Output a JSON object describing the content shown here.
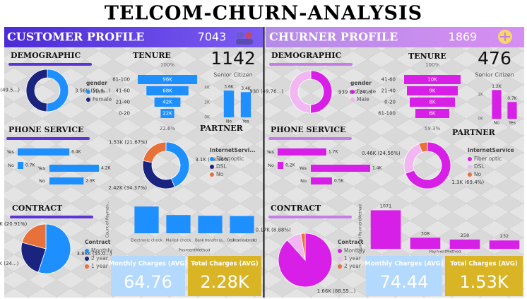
{
  "title": "TELCOM-CHURN-ANALYSIS",
  "panels": [
    {
      "title": "CUSTOMER PROFILE",
      "count": 7043,
      "headings": [
        "DEMOGRAPHIC",
        "TENURE",
        "PHONE SERVICE",
        "PARTNER",
        "CONTRACT"
      ],
      "senior_citizen": {
        "value": 1142,
        "label": "Senior Citizen"
      },
      "kpis": [
        {
          "label": "Monthly Charges (AVG)",
          "value": 64.76
        },
        {
          "label": "Total Charges (AVG)",
          "value": "2.28K"
        }
      ]
    },
    {
      "title": "CHURNER PROFILE",
      "count": 1869,
      "headings": [
        "DEMOGRAPHIC",
        "TENURE",
        "PHONE SERVICE",
        "PARTNER",
        "CONTRACT"
      ],
      "senior_citizen": {
        "value": 476,
        "label": "Senior Citizen"
      },
      "kpis": [
        {
          "label": "Monthly Charges (AVG)",
          "value": 74.44
        },
        {
          "label": "Total Charges (AVG)",
          "value": "1.53K"
        }
      ]
    }
  ],
  "chart_data": [
    {
      "type": "donut",
      "legend_title": "gender",
      "categories": [
        "Male",
        "Female"
      ],
      "values": [
        3560,
        3490
      ],
      "value_labels": [
        "3.56K (50.4...)",
        "3.49K (49.5...)"
      ],
      "colors": [
        "#1e8fff",
        "#1a237e"
      ]
    },
    {
      "type": "funnel",
      "categories": [
        "61-100",
        "41-60",
        "21-40",
        "0-20"
      ],
      "values": [
        96000,
        68000,
        42000,
        22000
      ],
      "value_labels": [
        "96K",
        "68K",
        "42K",
        "22K"
      ],
      "annotations": [
        "100%",
        "22.6%"
      ],
      "color": "#1e8fff"
    },
    {
      "type": "bar",
      "categories": [
        "No",
        "Yes"
      ],
      "values": [
        3600,
        3400
      ],
      "value_labels": [
        "3.6K",
        "3.4K"
      ],
      "ylim": [
        0,
        4000
      ],
      "yticks": [
        {
          "value": 0,
          "label": "0K"
        },
        {
          "value": 2000,
          "label": "2K"
        },
        {
          "value": 4000,
          "label": "4K"
        }
      ],
      "color": "#1e8fff"
    },
    {
      "type": "hbar",
      "categories": [
        "Yes",
        "No"
      ],
      "values": [
        6400,
        700
      ],
      "value_labels": [
        "6.4K",
        "0.7K"
      ],
      "xlim": [
        0,
        7000
      ],
      "color": "#1e8fff"
    },
    {
      "type": "hbar",
      "categories": [
        "Yes",
        "No"
      ],
      "values": [
        4200,
        2900
      ],
      "value_labels": [
        "4.2K",
        "2.9K"
      ],
      "xlim": [
        0,
        4500
      ],
      "color": "#1e8fff"
    },
    {
      "type": "donut",
      "legend_title": "InternetServi...",
      "categories": [
        "Fiber optic",
        "DSL",
        "No"
      ],
      "values": [
        3100,
        2420,
        1530
      ],
      "value_labels": [
        "3.1K (43.96%)",
        "2.42K (34.37%)",
        "1.53K (21.67%)"
      ],
      "colors": [
        "#1e8fff",
        "#1a237e",
        "#e8703a"
      ]
    },
    {
      "type": "pie",
      "legend_title": "Contract",
      "categories": [
        "Monthly",
        "2 year",
        "1 year"
      ],
      "values": [
        3880,
        1700,
        1470
      ],
      "value_labels": [
        "3.88K (55.0...)",
        "1.7K (24...)",
        "1.47K (20.91%)"
      ],
      "colors": [
        "#1e8fff",
        "#1a237e",
        "#e8703a"
      ]
    },
    {
      "type": "column",
      "categories": [
        "Electronic check",
        "Mailed check",
        "Bank transfer (a...",
        "Credit card (automatic)"
      ],
      "values": [
        2365,
        1612,
        1544,
        1522
      ],
      "ylim": [
        0,
        2500
      ],
      "xlabel": "PaymentMethod",
      "ylabel": "Count of Paymen...",
      "data_labels": false,
      "color": "#1e8fff"
    },
    {
      "type": "donut",
      "legend_title": "gender",
      "categories": [
        "Female",
        "Male"
      ],
      "values": [
        939,
        930
      ],
      "value_labels": [
        "939 (50.24...)",
        "930 (49.76...)"
      ],
      "colors": [
        "#d81fe8",
        "#f2b6f2"
      ]
    },
    {
      "type": "funnel",
      "categories": [
        "41-60",
        "21-40",
        "0-20",
        "61-100"
      ],
      "values": [
        10000,
        9000,
        8000,
        6000
      ],
      "value_labels": [
        "10K",
        "9K",
        "8K",
        "6K"
      ],
      "annotations": [
        "100%",
        "59.3%"
      ],
      "color": "#d81fe8"
    },
    {
      "type": "bar",
      "categories": [
        "No",
        "Yes"
      ],
      "values": [
        1200,
        700
      ],
      "value_labels": [
        "1.2K",
        "0.7K"
      ],
      "ylim": [
        0,
        1300
      ],
      "yticks": [
        {
          "value": 0,
          "label": "0K"
        },
        {
          "value": 1000,
          "label": "1K"
        }
      ],
      "color": "#d81fe8"
    },
    {
      "type": "hbar",
      "categories": [
        "Yes",
        "No"
      ],
      "values": [
        1700,
        200
      ],
      "value_labels": [
        "1.7K",
        "0.2K"
      ],
      "xlim": [
        0,
        1800
      ],
      "color": "#d81fe8"
    },
    {
      "type": "hbar",
      "categories": [
        "Yes",
        "No"
      ],
      "values": [
        1400,
        500
      ],
      "value_labels": [
        "1.4K",
        "0.5K"
      ],
      "xlim": [
        0,
        1500
      ],
      "color": "#d81fe8"
    },
    {
      "type": "donut",
      "legend_title": "InternetService",
      "categories": [
        "Fiber optic",
        "DSL",
        "No"
      ],
      "values": [
        1300,
        460,
        113
      ],
      "value_labels": [
        "1.3K (69.4%)",
        "0.46K (24.56%)",
        null
      ],
      "colors": [
        "#d81fe8",
        "#f2b6f2",
        "#e8703a"
      ]
    },
    {
      "type": "pie",
      "legend_title": "Contract",
      "categories": [
        "Monthly",
        "1 year",
        "2 year"
      ],
      "values": [
        1660,
        170,
        48
      ],
      "value_labels": [
        "1.66K (88.55...)",
        "0.17K (8.88%)",
        null
      ],
      "colors": [
        "#d81fe8",
        "#f2b6f2",
        "#e8703a"
      ]
    },
    {
      "type": "column",
      "categories": [
        null,
        null,
        null,
        null
      ],
      "values": [
        1071,
        308,
        258,
        232
      ],
      "ylim": [
        0,
        1100
      ],
      "xlabel": "PaymentMethod",
      "ylabel": "Count of PaymentMethod",
      "data_labels": true,
      "color": "#d81fe8"
    }
  ]
}
